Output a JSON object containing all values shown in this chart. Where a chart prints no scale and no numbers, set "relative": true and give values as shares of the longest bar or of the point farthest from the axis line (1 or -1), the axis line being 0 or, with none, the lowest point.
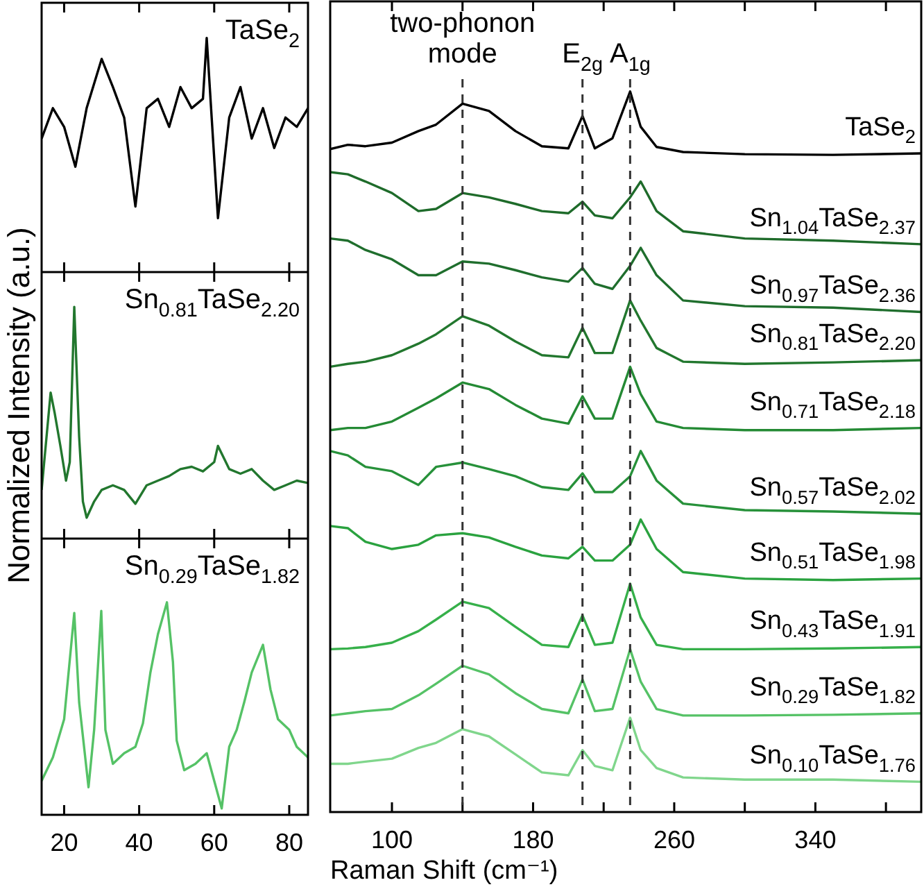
{
  "chart_data": [
    {
      "type": "line",
      "relative": true,
      "tick_labels": false,
      "xlim": [
        14,
        85
      ],
      "xticks": [
        20,
        40,
        60,
        80
      ],
      "x": [
        14,
        17,
        20,
        23,
        26,
        30,
        33,
        36,
        39,
        42,
        45,
        48,
        51,
        54,
        57,
        58,
        61,
        64,
        67,
        70,
        73,
        76,
        79,
        82,
        85
      ],
      "series": [
        {
          "name": "TaSe$_{2}$",
          "color": "#000000",
          "values": [
            0.57,
            0.7,
            0.62,
            0.45,
            0.7,
            0.91,
            0.79,
            0.66,
            0.28,
            0.7,
            0.74,
            0.62,
            0.79,
            0.7,
            0.74,
            1.0,
            0.23,
            0.66,
            0.79,
            0.57,
            0.7,
            0.53,
            0.66,
            0.62,
            0.7
          ]
        }
      ]
    },
    {
      "type": "line",
      "relative": true,
      "tick_labels": false,
      "ylabel": "Normalized Intensity (a.u.)",
      "xlim": [
        14,
        85
      ],
      "xticks": [
        20,
        40,
        60,
        80
      ],
      "x": [
        14,
        16.4,
        17.5,
        19,
        20.5,
        21.5,
        22.7,
        24,
        25,
        26,
        28,
        30,
        33,
        36,
        39,
        42,
        45,
        48,
        51,
        54,
        57,
        60,
        61,
        64,
        67,
        70,
        73,
        76,
        79,
        82,
        85
      ],
      "series": [
        {
          "name": "Sn$_{0.81}$TaSe$_{2.20}$",
          "color": "#22772e",
          "values": [
            0.21,
            0.63,
            0.54,
            0.4,
            0.25,
            0.33,
            1.0,
            0.44,
            0.16,
            0.09,
            0.16,
            0.21,
            0.23,
            0.21,
            0.15,
            0.23,
            0.25,
            0.27,
            0.3,
            0.31,
            0.29,
            0.33,
            0.4,
            0.3,
            0.28,
            0.3,
            0.25,
            0.21,
            0.23,
            0.25,
            0.24
          ]
        }
      ]
    },
    {
      "type": "line",
      "relative": true,
      "tick_labels": "x",
      "xlim": [
        14,
        85
      ],
      "xticks": [
        20,
        40,
        60,
        80
      ],
      "x": [
        14,
        17,
        20,
        22.7,
        24,
        26.5,
        28,
        29.9,
        31,
        33,
        36,
        39,
        41,
        43,
        45,
        47.4,
        49,
        50,
        52,
        55,
        58,
        60,
        62,
        64,
        66,
        68,
        70,
        73,
        75,
        77,
        80,
        82,
        85
      ],
      "series": [
        {
          "name": "Sn$_{0.29}$TaSe$_{1.82}$",
          "color": "#55c266",
          "values": [
            0.16,
            0.27,
            0.45,
            0.95,
            0.53,
            0.13,
            0.4,
            0.96,
            0.4,
            0.24,
            0.29,
            0.32,
            0.43,
            0.67,
            0.85,
            1.0,
            0.72,
            0.35,
            0.21,
            0.24,
            0.29,
            0.16,
            0.03,
            0.32,
            0.4,
            0.53,
            0.67,
            0.8,
            0.59,
            0.45,
            0.4,
            0.32,
            0.27
          ]
        }
      ]
    },
    {
      "type": "line",
      "relative": true,
      "tick_labels": "x",
      "xlabel": "Raman Shift (cm⁻¹)",
      "xlim": [
        65,
        400
      ],
      "xticks": [
        100,
        {
          "value": 140,
          "label": null
        },
        180,
        {
          "value": 220,
          "label": null
        },
        260,
        {
          "value": 300,
          "label": null
        },
        340,
        {
          "value": 380,
          "label": null
        }
      ],
      "ref_lines": [
        {
          "axis": "x",
          "value": 140,
          "label": "two-phonon mode",
          "color": "#333333",
          "line_style": "dashed"
        },
        {
          "axis": "x",
          "value": 208,
          "label": "E$_{2g}$",
          "color": "#333333",
          "line_style": "dashed"
        },
        {
          "axis": "x",
          "value": 235,
          "label": "A$_{1g}$",
          "color": "#333333",
          "line_style": "dashed"
        }
      ],
      "x": [
        65,
        75,
        85,
        100,
        115,
        125,
        140,
        155,
        170,
        185,
        200,
        208,
        215,
        225,
        235,
        241,
        250,
        265,
        300,
        350,
        400
      ],
      "series": [
        {
          "name": "TaSe$_{2}$",
          "color": "#000000",
          "values": [
            0.92,
            0.926,
            0.924,
            0.929,
            0.945,
            0.954,
            0.983,
            0.973,
            0.945,
            0.924,
            0.921,
            0.966,
            0.921,
            0.935,
            1.0,
            0.951,
            0.923,
            0.916,
            0.913,
            0.912,
            0.914
          ]
        },
        {
          "name": "Sn$_{1.04}$TaSe$_{2.37}$",
          "color": "#1e6b2a",
          "values": [
            0.888,
            0.885,
            0.875,
            0.859,
            0.834,
            0.837,
            0.859,
            0.853,
            0.844,
            0.834,
            0.831,
            0.847,
            0.828,
            0.824,
            0.853,
            0.875,
            0.834,
            0.806,
            0.796,
            0.793,
            0.788
          ]
        },
        {
          "name": "Sn$_{0.97}$TaSe$_{2.36}$",
          "color": "#1f6e2d",
          "values": [
            0.796,
            0.793,
            0.78,
            0.767,
            0.745,
            0.745,
            0.764,
            0.761,
            0.752,
            0.742,
            0.736,
            0.755,
            0.733,
            0.726,
            0.758,
            0.783,
            0.745,
            0.71,
            0.702,
            0.7,
            0.694
          ]
        },
        {
          "name": "Sn$_{0.81}$TaSe$_{2.20}$",
          "color": "#22772e",
          "values": [
            0.618,
            0.622,
            0.625,
            0.634,
            0.65,
            0.663,
            0.688,
            0.675,
            0.653,
            0.634,
            0.631,
            0.672,
            0.637,
            0.637,
            0.71,
            0.682,
            0.644,
            0.625,
            0.622,
            0.624,
            0.627
          ]
        },
        {
          "name": "Sn$_{0.71}$TaSe$_{2.18}$",
          "color": "#248a34",
          "values": [
            0.53,
            0.533,
            0.533,
            0.542,
            0.561,
            0.574,
            0.596,
            0.587,
            0.565,
            0.546,
            0.539,
            0.577,
            0.546,
            0.546,
            0.618,
            0.58,
            0.542,
            0.533,
            0.53,
            0.53,
            0.533
          ]
        },
        {
          "name": "Sn$_{0.57}$TaSe$_{2.02}$",
          "color": "#27913a",
          "values": [
            0.501,
            0.495,
            0.479,
            0.473,
            0.454,
            0.479,
            0.485,
            0.476,
            0.466,
            0.451,
            0.447,
            0.47,
            0.444,
            0.444,
            0.466,
            0.501,
            0.46,
            0.428,
            0.419,
            0.417,
            0.414
          ]
        },
        {
          "name": "Sn$_{0.51}$TaSe$_{1.98}$",
          "color": "#2aa23f",
          "values": [
            0.397,
            0.394,
            0.375,
            0.365,
            0.371,
            0.384,
            0.387,
            0.381,
            0.368,
            0.356,
            0.352,
            0.368,
            0.349,
            0.349,
            0.371,
            0.406,
            0.365,
            0.333,
            0.324,
            0.322,
            0.324
          ]
        },
        {
          "name": "Sn$_{0.43}$TaSe$_{1.91}$",
          "color": "#36b04a",
          "values": [
            0.226,
            0.227,
            0.229,
            0.235,
            0.251,
            0.267,
            0.292,
            0.283,
            0.257,
            0.232,
            0.229,
            0.273,
            0.232,
            0.235,
            0.317,
            0.27,
            0.232,
            0.226,
            0.226,
            0.227,
            0.229
          ]
        },
        {
          "name": "Sn$_{0.29}$TaSe$_{1.82}$",
          "color": "#55c266",
          "values": [
            0.134,
            0.137,
            0.14,
            0.143,
            0.162,
            0.178,
            0.203,
            0.191,
            0.165,
            0.143,
            0.137,
            0.184,
            0.14,
            0.143,
            0.226,
            0.181,
            0.143,
            0.134,
            0.134,
            0.135,
            0.137
          ]
        },
        {
          "name": "Sn$_{0.10}$TaSe$_{1.76}$",
          "color": "#80d68c",
          "values": [
            0.067,
            0.067,
            0.07,
            0.074,
            0.089,
            0.096,
            0.115,
            0.105,
            0.08,
            0.055,
            0.051,
            0.086,
            0.064,
            0.058,
            0.131,
            0.086,
            0.061,
            0.048,
            0.045,
            0.045,
            0.042
          ]
        }
      ]
    }
  ]
}
